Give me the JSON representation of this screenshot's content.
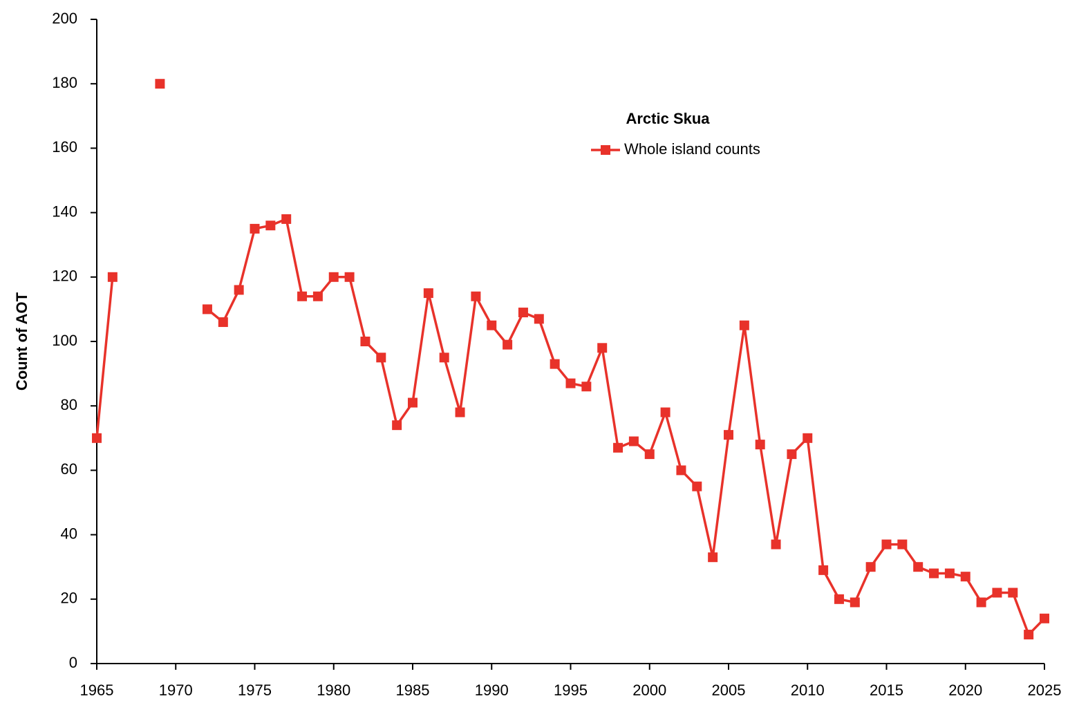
{
  "chart_data": {
    "type": "line",
    "y_label": "Count of AOT",
    "legend_title": "Arctic Skua",
    "x": [
      1965,
      1966,
      1967,
      1968,
      1969,
      1970,
      1971,
      1972,
      1973,
      1974,
      1975,
      1976,
      1977,
      1978,
      1979,
      1980,
      1981,
      1982,
      1983,
      1984,
      1985,
      1986,
      1987,
      1988,
      1989,
      1990,
      1991,
      1992,
      1993,
      1994,
      1995,
      1996,
      1997,
      1998,
      1999,
      2000,
      2001,
      2002,
      2003,
      2004,
      2005,
      2006,
      2007,
      2008,
      2009,
      2010,
      2011,
      2012,
      2013,
      2014,
      2015,
      2016,
      2017,
      2018,
      2019,
      2020,
      2021,
      2022,
      2023,
      2024,
      2025
    ],
    "series": [
      {
        "name": "Whole island counts",
        "color": "#e8322a",
        "values": [
          70,
          120,
          null,
          null,
          180,
          null,
          null,
          110,
          106,
          116,
          135,
          136,
          138,
          114,
          114,
          120,
          120,
          100,
          95,
          74,
          81,
          115,
          95,
          78,
          114,
          105,
          99,
          109,
          107,
          93,
          87,
          86,
          98,
          67,
          69,
          65,
          78,
          60,
          55,
          33,
          71,
          105,
          68,
          37,
          65,
          70,
          29,
          20,
          19,
          30,
          37,
          37,
          30,
          28,
          28,
          27,
          19,
          22,
          22,
          9,
          14
        ]
      }
    ],
    "xlim": [
      1965,
      2025
    ],
    "xticks": [
      1965,
      1970,
      1975,
      1980,
      1985,
      1990,
      1995,
      2000,
      2005,
      2010,
      2015,
      2020,
      2025
    ],
    "ylim": [
      0,
      200
    ],
    "yticks": [
      0,
      20,
      40,
      60,
      80,
      100,
      120,
      140,
      160,
      180,
      200
    ],
    "grid": false
  }
}
